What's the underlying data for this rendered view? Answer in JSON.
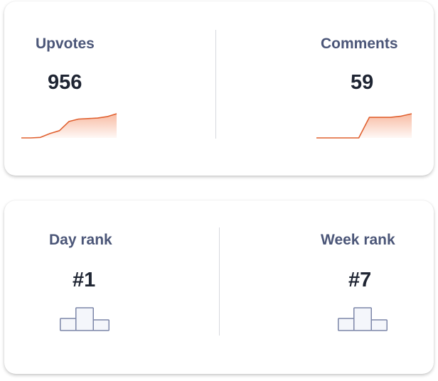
{
  "stats": {
    "upvotes": {
      "label": "Upvotes",
      "value": "956",
      "trend": [
        0,
        0,
        0.02,
        0.18,
        0.3,
        0.68,
        0.78,
        0.8,
        0.82,
        0.88,
        1.0
      ]
    },
    "comments": {
      "label": "Comments",
      "value": "59",
      "trend": [
        0,
        0,
        0,
        0,
        0,
        0.85,
        0.85,
        0.85,
        0.9,
        1.0
      ]
    }
  },
  "ranks": {
    "day": {
      "label": "Day rank",
      "value": "#1",
      "icon": "podium-icon"
    },
    "week": {
      "label": "Week rank",
      "value": "#7",
      "icon": "podium-icon"
    }
  },
  "colors": {
    "spark_line": "#e0602f",
    "spark_fill_top": "#f6a585",
    "podium_stroke": "#7c86a8",
    "podium_fill": "#f4f6fb"
  }
}
